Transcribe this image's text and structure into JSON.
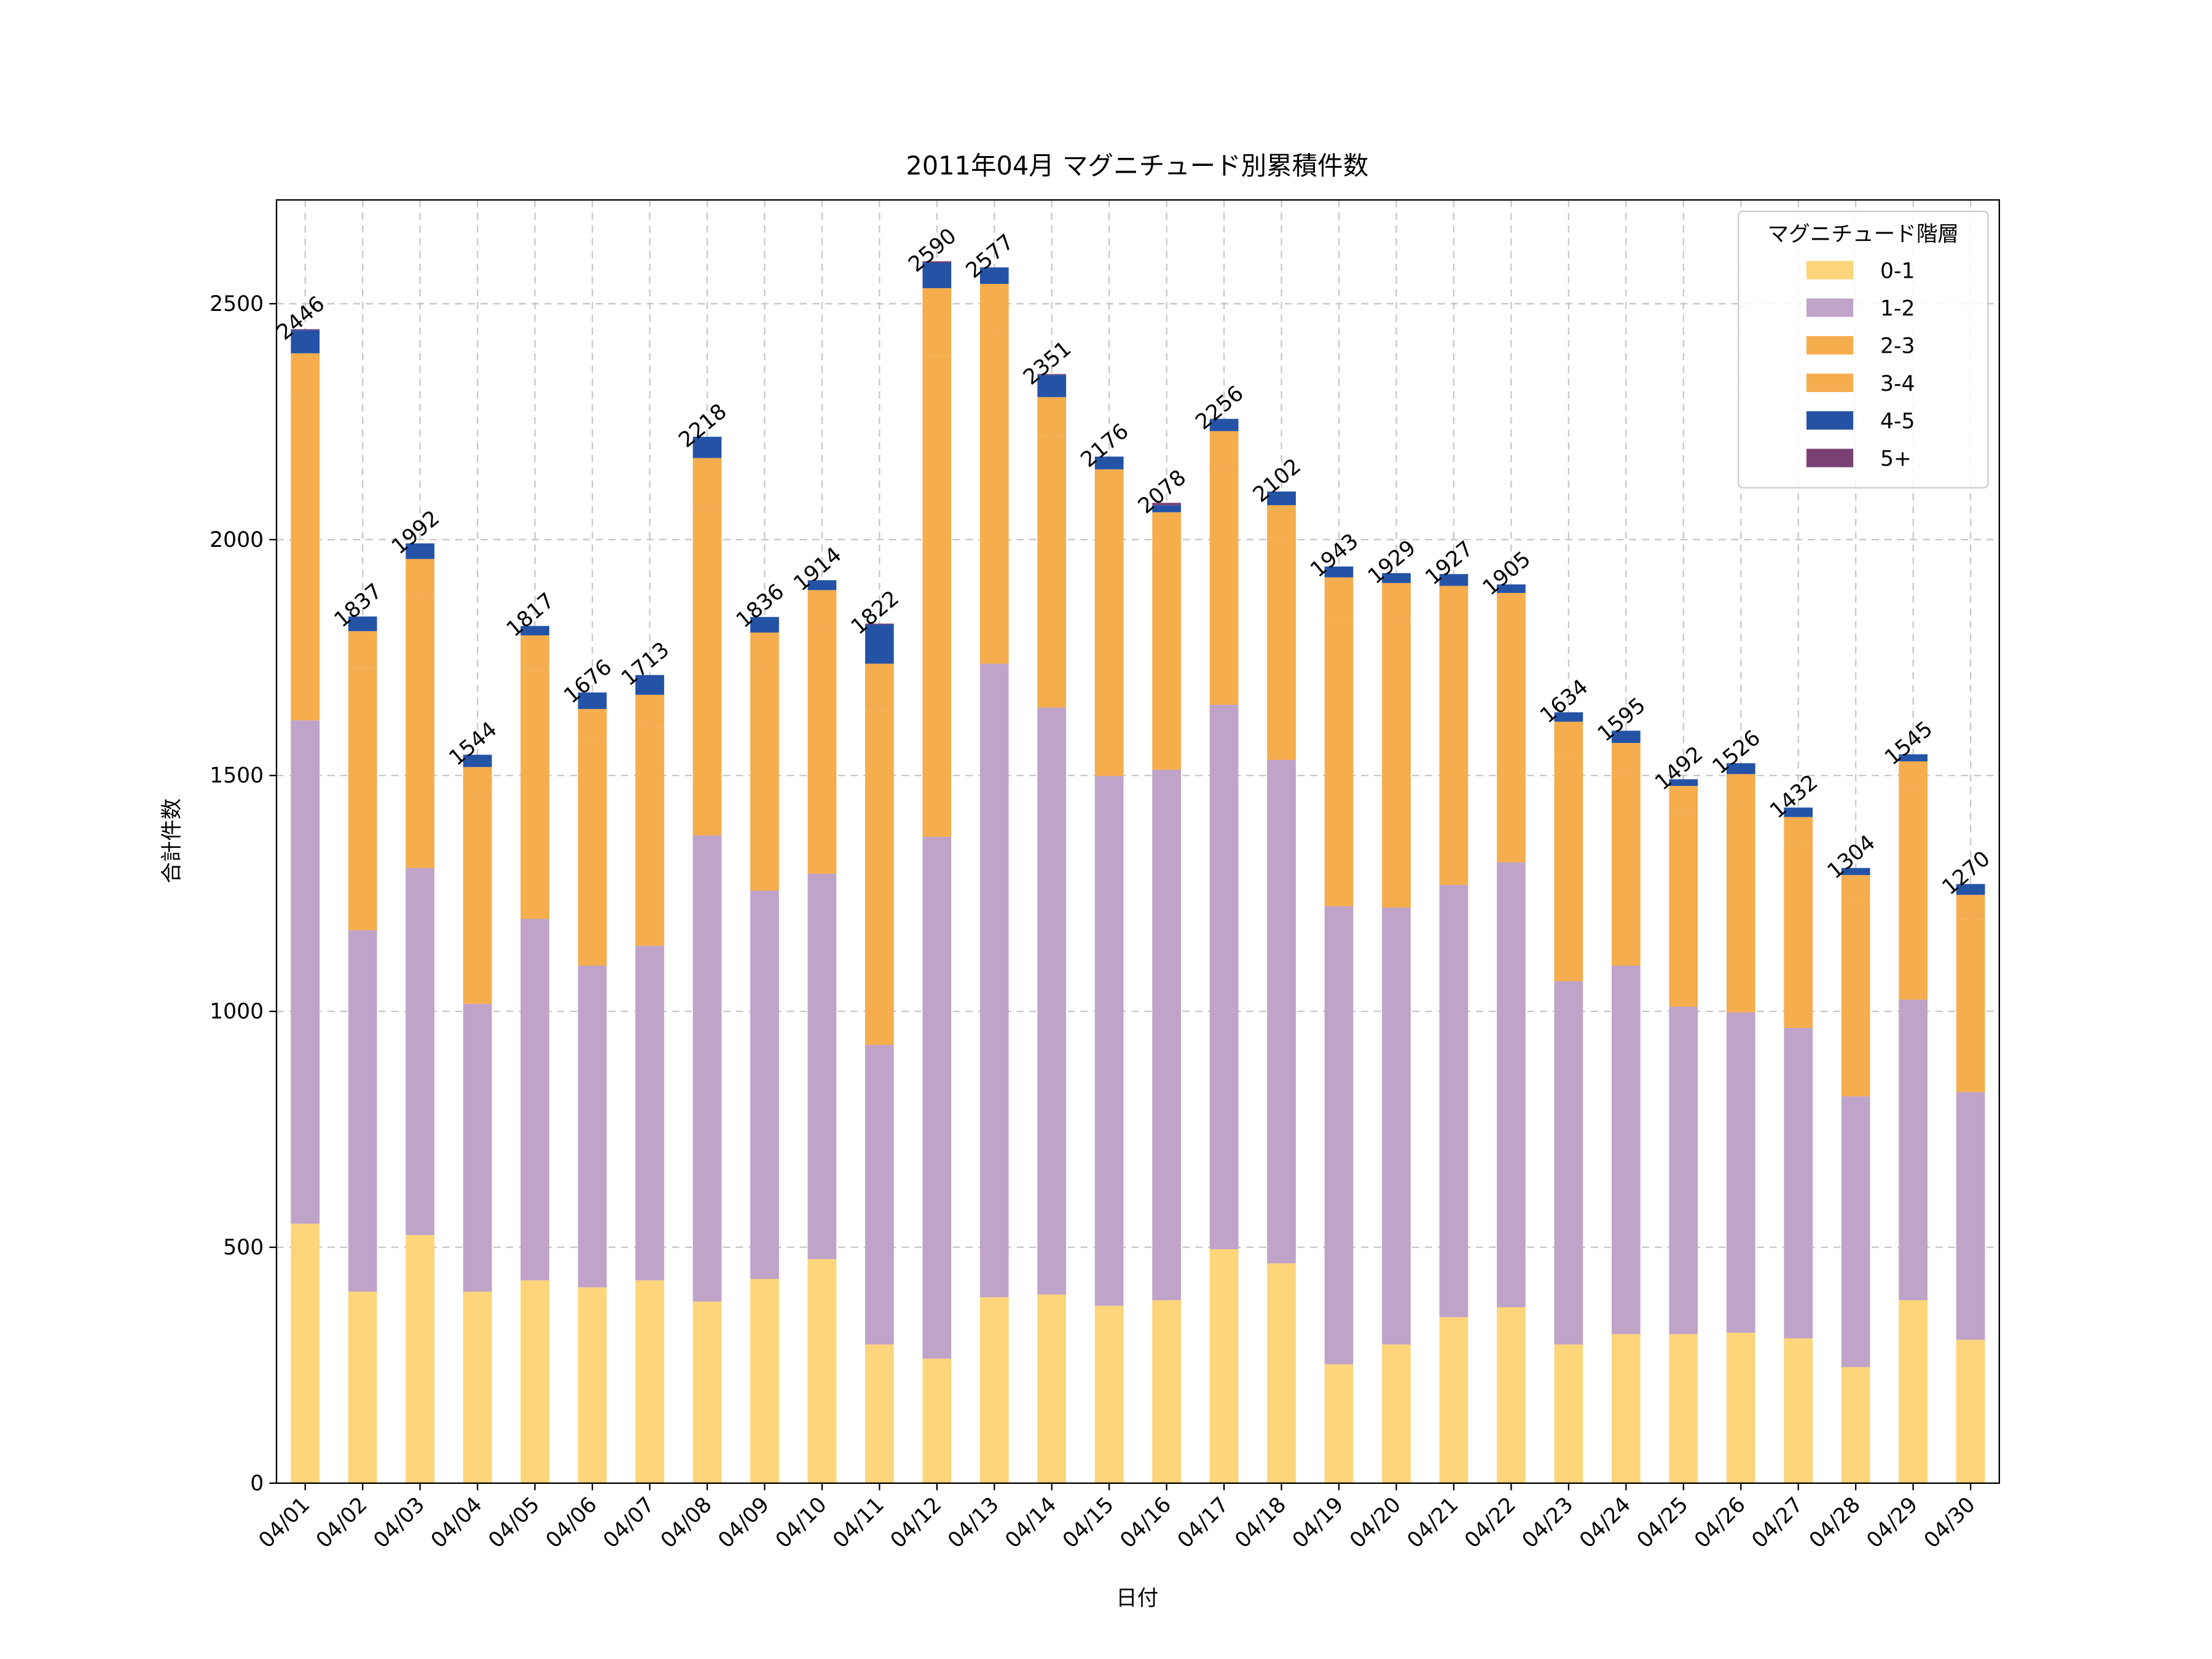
{
  "chart_data": {
    "type": "stacked-bar",
    "title": "2011年04月 マグニチュード別累積件数",
    "xlabel": "日付",
    "ylabel": "合計件数",
    "legend_title": "マグニチュード階層",
    "legend": "upper right",
    "grid": true,
    "ylim": [
      0,
      2720
    ],
    "yticks": [
      0,
      500,
      1000,
      1500,
      2000,
      2500
    ],
    "categories": [
      "04/01",
      "04/02",
      "04/03",
      "04/04",
      "04/05",
      "04/06",
      "04/07",
      "04/08",
      "04/09",
      "04/10",
      "04/11",
      "04/12",
      "04/13",
      "04/14",
      "04/15",
      "04/16",
      "04/17",
      "04/18",
      "04/19",
      "04/20",
      "04/21",
      "04/22",
      "04/23",
      "04/24",
      "04/25",
      "04/26",
      "04/27",
      "04/28",
      "04/29",
      "04/30"
    ],
    "series": [
      {
        "name": "0-1",
        "color": "#fdd57a",
        "values": [
          550,
          406,
          526,
          406,
          430,
          415,
          430,
          385,
          433,
          475,
          294,
          264,
          394,
          400,
          376,
          388,
          496,
          466,
          252,
          294,
          352,
          373,
          294,
          316,
          316,
          319,
          307,
          246,
          388,
          304
        ]
      },
      {
        "name": "1-2",
        "color": "#c0a3c8",
        "values": [
          1067,
          766,
          778,
          610,
          766,
          682,
          709,
          988,
          823,
          817,
          635,
          1106,
          1343,
          1244,
          1123,
          1124,
          1154,
          1067,
          971,
          926,
          916,
          943,
          770,
          781,
          694,
          679,
          658,
          574,
          637,
          525
        ]
      },
      {
        "name": "2-3",
        "color": "#f5ad4e",
        "values": [
          681,
          555,
          573,
          439,
          526,
          476,
          465,
          700,
          479,
          526,
          707,
          1018,
          704,
          576,
          569,
          478,
          507,
          472,
          610,
          602,
          555,
          500,
          481,
          413,
          409,
          442,
          391,
          410,
          442,
          366
        ]
      },
      {
        "name": "3-4",
        "color": "#f5ad4e",
        "values": [
          97,
          79,
          82,
          63,
          75,
          68,
          67,
          100,
          68,
          75,
          101,
          145,
          101,
          82,
          81,
          68,
          73,
          68,
          87,
          86,
          79,
          71,
          69,
          59,
          59,
          63,
          56,
          59,
          63,
          52
        ]
      },
      {
        "name": "4-5",
        "color": "#2453a6",
        "values": [
          49,
          31,
          33,
          26,
          20,
          35,
          42,
          45,
          33,
          21,
          83,
          54,
          35,
          47,
          27,
          15,
          26,
          29,
          23,
          21,
          25,
          18,
          20,
          26,
          14,
          23,
          20,
          15,
          15,
          23
        ]
      },
      {
        "name": "5+",
        "color": "#7a3f73",
        "values": [
          2,
          0,
          0,
          0,
          0,
          0,
          0,
          0,
          0,
          0,
          2,
          3,
          0,
          2,
          0,
          5,
          0,
          0,
          0,
          0,
          0,
          0,
          0,
          0,
          0,
          0,
          0,
          0,
          0,
          0
        ]
      }
    ],
    "totals": [
      2446,
      1837,
      1992,
      1544,
      1817,
      1676,
      1713,
      2218,
      1836,
      1914,
      1822,
      2590,
      2577,
      2351,
      2176,
      2078,
      2256,
      2102,
      1943,
      1929,
      1927,
      1905,
      1634,
      1595,
      1492,
      1526,
      1432,
      1304,
      1545,
      1270
    ]
  }
}
